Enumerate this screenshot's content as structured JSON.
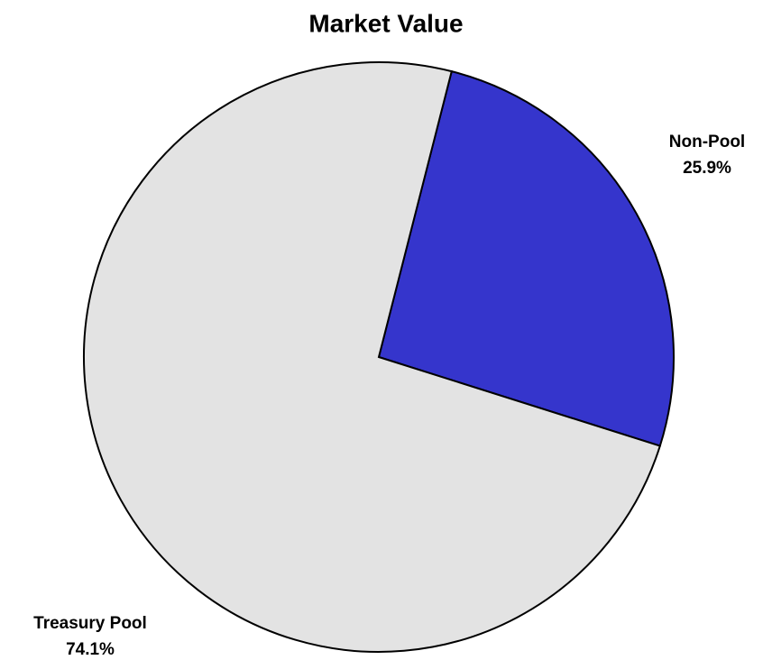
{
  "chart_data": {
    "type": "pie",
    "title": "Market Value",
    "categories": [
      "Non-Pool",
      "Treasury Pool"
    ],
    "values": [
      25.9,
      74.1
    ],
    "value_labels": [
      "25.9%",
      "74.1%"
    ],
    "colors": [
      "#3535cc",
      "#e3e3e3"
    ]
  }
}
